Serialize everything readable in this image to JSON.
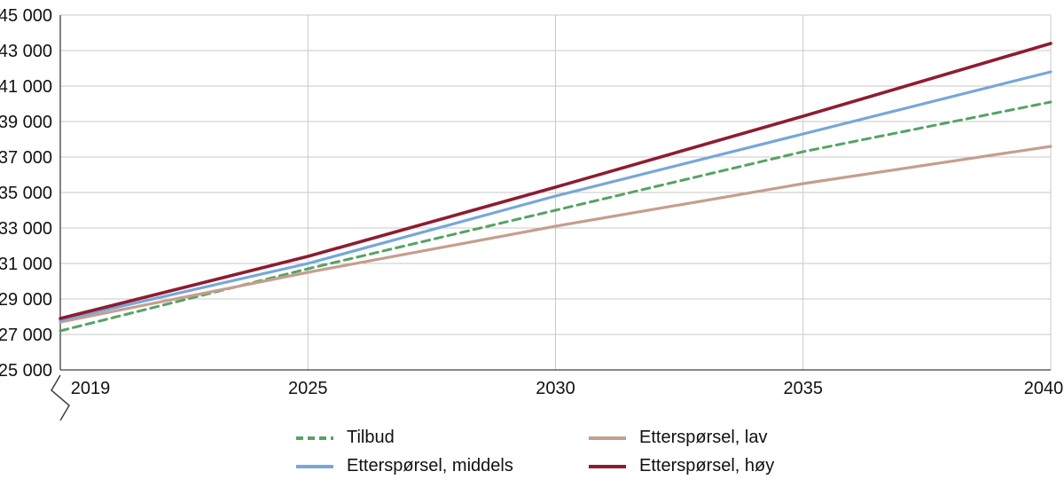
{
  "chart_data": {
    "type": "line",
    "title": "",
    "x_axis_type": "category",
    "x": [
      "2019",
      "2025",
      "2030",
      "2035",
      "2040"
    ],
    "y_ticks": [
      25000,
      27000,
      29000,
      31000,
      33000,
      35000,
      37000,
      39000,
      41000,
      43000,
      45000
    ],
    "ylim": [
      25000,
      45000
    ],
    "grid": true,
    "axis_break": true,
    "legend_position": "bottom",
    "colors": {
      "grid": "#c9c9c9",
      "axis": "#404040",
      "text": "#111111"
    },
    "series": [
      {
        "name": "Tilbud",
        "color": "#55a364",
        "dash": "9 6",
        "width": 3,
        "values": [
          27200,
          30700,
          34000,
          37300,
          40100
        ]
      },
      {
        "name": "Etterspørsel, lav",
        "color": "#c69e8e",
        "dash": null,
        "width": 3.2,
        "values": [
          27700,
          30500,
          33100,
          35500,
          37600
        ]
      },
      {
        "name": "Etterspørsel, middels",
        "color": "#76a7d7",
        "dash": null,
        "width": 3.2,
        "values": [
          27800,
          31000,
          34800,
          38300,
          41800
        ]
      },
      {
        "name": "Etterspørsel, høy",
        "color": "#8e1c30",
        "dash": null,
        "width": 3.6,
        "values": [
          27900,
          31400,
          35300,
          39300,
          43400
        ]
      }
    ]
  }
}
